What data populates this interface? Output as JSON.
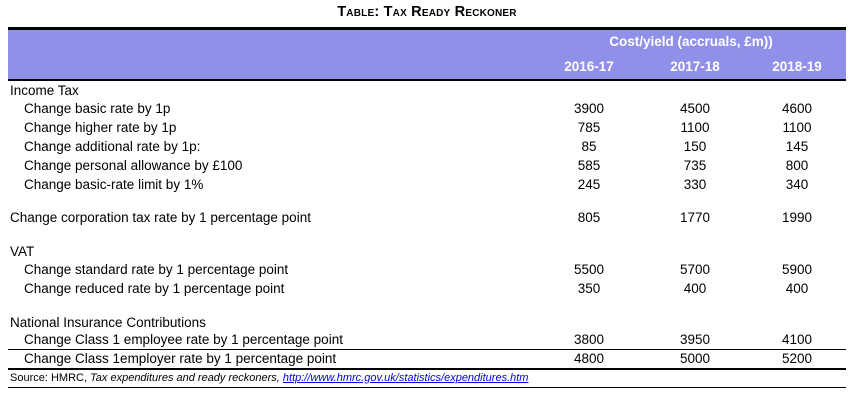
{
  "title": "Table: Tax Ready Reckoner",
  "table": {
    "header": {
      "group_label": "Cost/yield (accruals, £m))",
      "years": [
        "2016-17",
        "2017-18",
        "2018-19"
      ]
    },
    "rows": [
      {
        "label": "Income Tax",
        "kind": "section",
        "values": [
          "",
          "",
          ""
        ]
      },
      {
        "label": "Change basic rate by 1p",
        "kind": "item",
        "values": [
          "3900",
          "4500",
          "4600"
        ]
      },
      {
        "label": "Change higher rate by 1p",
        "kind": "item",
        "values": [
          "785",
          "1100",
          "1100"
        ]
      },
      {
        "label": "Change additional rate by 1p:",
        "kind": "item",
        "values": [
          "85",
          "150",
          "145"
        ]
      },
      {
        "label": "Change personal allowance by £100",
        "kind": "item",
        "values": [
          "585",
          "735",
          "800"
        ]
      },
      {
        "label": "Change basic-rate limit by 1%",
        "kind": "item",
        "values": [
          "245",
          "330",
          "340"
        ]
      },
      {
        "label": "",
        "kind": "spacer",
        "values": [
          "",
          "",
          ""
        ]
      },
      {
        "label": "Change corporation tax rate by 1 percentage point",
        "kind": "item-flush",
        "values": [
          "805",
          "1770",
          "1990"
        ]
      },
      {
        "label": "",
        "kind": "spacer",
        "values": [
          "",
          "",
          ""
        ]
      },
      {
        "label": "VAT",
        "kind": "section",
        "values": [
          "",
          "",
          ""
        ]
      },
      {
        "label": "Change standard rate by 1 percentage point",
        "kind": "item",
        "values": [
          "5500",
          "5700",
          "5900"
        ]
      },
      {
        "label": "Change reduced rate by 1 percentage point",
        "kind": "item",
        "values": [
          "350",
          "400",
          "400"
        ]
      },
      {
        "label": "",
        "kind": "spacer",
        "values": [
          "",
          "",
          ""
        ]
      },
      {
        "label": "National Insurance Contributions",
        "kind": "section",
        "values": [
          "",
          "",
          ""
        ]
      },
      {
        "label": "Change Class 1 employee rate by 1 percentage point",
        "kind": "item",
        "values": [
          "3800",
          "3950",
          "4100"
        ]
      },
      {
        "label": "Change Class 1employer rate by 1 percentage point",
        "kind": "item",
        "values": [
          "4800",
          "5000",
          "5200"
        ],
        "rule_above": true
      }
    ]
  },
  "source": {
    "prefix": "Source: HMRC, ",
    "work_italic": "Tax expenditures and ready reckoners, ",
    "link_text": "http://www.hmrc.gov.uk/statistics/expenditures.htm"
  },
  "colors": {
    "header_bg": "#9090e8",
    "header_text": "#ffffff",
    "link": "#0000ee"
  }
}
